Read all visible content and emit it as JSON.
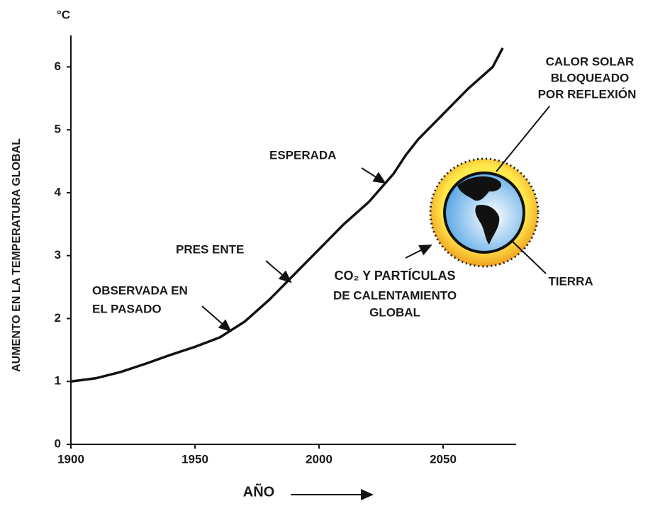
{
  "chart_data": {
    "type": "line",
    "unit_label": "°C",
    "y_label": "AUMENTO EN LA TEMPERATURA GLOBAL",
    "x_label": "AÑO",
    "x": [
      1900,
      1910,
      1920,
      1930,
      1940,
      1950,
      1960,
      1970,
      1980,
      1990,
      2000,
      2010,
      2020,
      2030,
      2035,
      2040,
      2050,
      2060,
      2070,
      2074
    ],
    "series": [
      {
        "color": "#111111",
        "values": [
          1.0,
          1.05,
          1.15,
          1.28,
          1.42,
          1.55,
          1.7,
          1.95,
          2.3,
          2.7,
          3.1,
          3.5,
          3.85,
          4.3,
          4.6,
          4.85,
          5.25,
          5.65,
          6.0,
          6.3
        ]
      }
    ],
    "xlim": [
      1900,
      2080
    ],
    "ylim": [
      0,
      6.5
    ],
    "xticks": [
      1900,
      1950,
      2000,
      2050
    ],
    "yticks": [
      0,
      1,
      2,
      3,
      4,
      5,
      6
    ],
    "annotations": [
      {
        "lines": [
          "OBSERVADA EN",
          "EL PASADO"
        ]
      },
      {
        "lines": [
          "PRES ENTE"
        ]
      },
      {
        "lines": [
          "ESPERADA"
        ]
      },
      {
        "lines": [
          "CALOR SOLAR",
          "BLOQUEADO",
          "POR REFLEXIÓN"
        ]
      },
      {
        "lines": [
          "CO₂ Y PARTÍCULAS",
          "DE CALENTAMIENTO",
          "GLOBAL"
        ]
      },
      {
        "lines": [
          "TIERRA"
        ]
      }
    ]
  }
}
